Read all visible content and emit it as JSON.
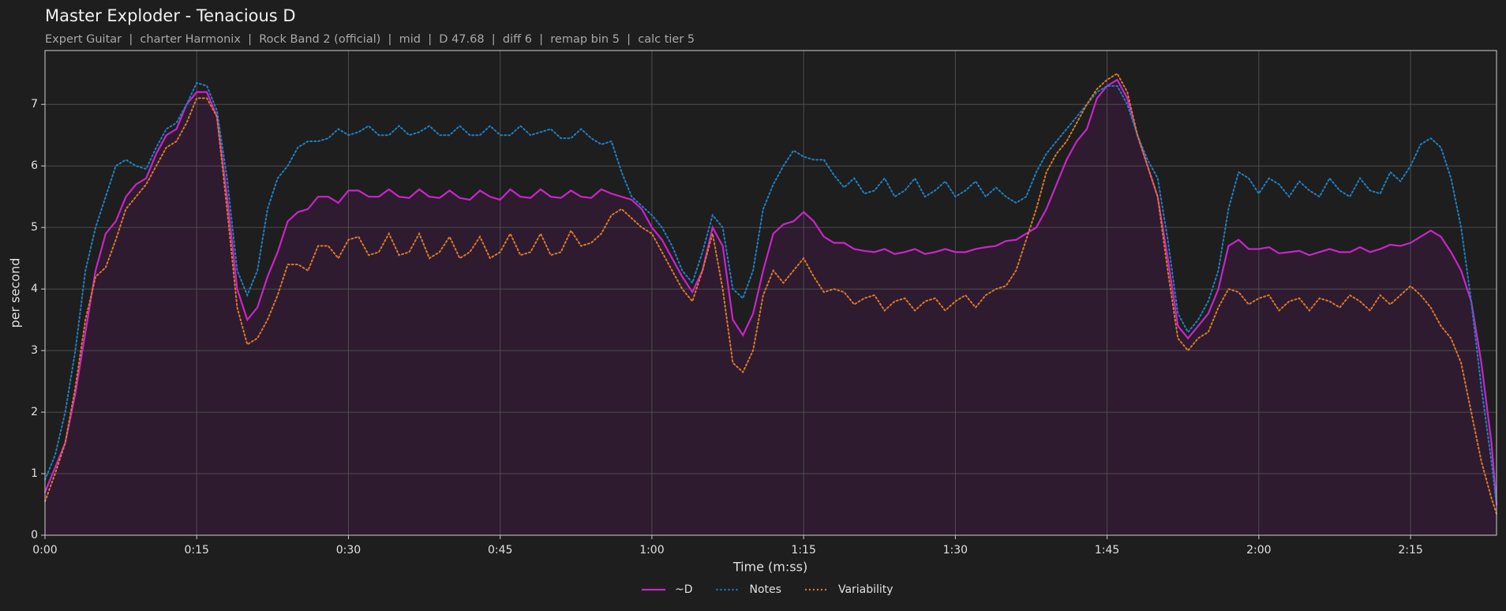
{
  "chart_data": {
    "type": "line",
    "title": "Master Exploder - Tenacious D",
    "subtitle": "Expert Guitar  |  charter Harmonix  |  Rock Band 2 (official)  |  mid  |  D 47.68  |  diff 6  |  remap bin 5  |  calc tier 5",
    "x_label": "Time (m:ss)",
    "y_label": "per second",
    "x": [
      0,
      1,
      2,
      3,
      4,
      5,
      6,
      7,
      8,
      9,
      10,
      11,
      12,
      13,
      14,
      15,
      16,
      17,
      18,
      19,
      20,
      21,
      22,
      23,
      24,
      25,
      26,
      27,
      28,
      29,
      30,
      31,
      32,
      33,
      34,
      35,
      36,
      37,
      38,
      39,
      40,
      41,
      42,
      43,
      44,
      45,
      46,
      47,
      48,
      49,
      50,
      51,
      52,
      53,
      54,
      55,
      56,
      57,
      58,
      59,
      60,
      61,
      62,
      63,
      64,
      65,
      66,
      67,
      68,
      69,
      70,
      71,
      72,
      73,
      74,
      75,
      76,
      77,
      78,
      79,
      80,
      81,
      82,
      83,
      84,
      85,
      86,
      87,
      88,
      89,
      90,
      91,
      92,
      93,
      94,
      95,
      96,
      97,
      98,
      99,
      100,
      101,
      102,
      103,
      104,
      105,
      106,
      107,
      108,
      109,
      110,
      111,
      112,
      113,
      114,
      115,
      116,
      117,
      118,
      119,
      120,
      121,
      122,
      123,
      124,
      125,
      126,
      127,
      128,
      129,
      130,
      131,
      132,
      133,
      134,
      135,
      136,
      137,
      138,
      139,
      140,
      141,
      142,
      143,
      143.5
    ],
    "series": [
      {
        "name": "~D",
        "color": "#c825c8",
        "linestyle": "solid",
        "fill": true,
        "fill_color": "#2e1b2f",
        "values": [
          0.7,
          1.1,
          1.5,
          2.3,
          3.3,
          4.3,
          4.9,
          5.1,
          5.5,
          5.7,
          5.8,
          6.2,
          6.5,
          6.6,
          7.0,
          7.2,
          7.2,
          6.8,
          5.5,
          4.0,
          3.5,
          3.7,
          4.2,
          4.6,
          5.1,
          5.25,
          5.3,
          5.5,
          5.5,
          5.4,
          5.6,
          5.6,
          5.5,
          5.5,
          5.62,
          5.5,
          5.48,
          5.62,
          5.5,
          5.48,
          5.6,
          5.48,
          5.45,
          5.6,
          5.5,
          5.45,
          5.62,
          5.5,
          5.48,
          5.62,
          5.5,
          5.48,
          5.6,
          5.5,
          5.48,
          5.62,
          5.55,
          5.5,
          5.45,
          5.3,
          5.0,
          4.8,
          4.5,
          4.2,
          3.95,
          4.3,
          5.0,
          4.7,
          3.5,
          3.25,
          3.6,
          4.3,
          4.9,
          5.05,
          5.1,
          5.25,
          5.1,
          4.85,
          4.75,
          4.75,
          4.65,
          4.62,
          4.6,
          4.65,
          4.57,
          4.6,
          4.65,
          4.57,
          4.6,
          4.65,
          4.6,
          4.6,
          4.65,
          4.68,
          4.7,
          4.78,
          4.8,
          4.9,
          5.0,
          5.3,
          5.7,
          6.1,
          6.4,
          6.6,
          7.1,
          7.3,
          7.4,
          7.1,
          6.5,
          6.0,
          5.5,
          4.5,
          3.4,
          3.2,
          3.4,
          3.6,
          4.0,
          4.7,
          4.8,
          4.65,
          4.65,
          4.68,
          4.58,
          4.6,
          4.62,
          4.55,
          4.6,
          4.65,
          4.6,
          4.6,
          4.68,
          4.6,
          4.65,
          4.72,
          4.7,
          4.75,
          4.85,
          4.95,
          4.85,
          4.6,
          4.3,
          3.8,
          2.8,
          1.5,
          0.5
        ]
      },
      {
        "name": "Notes",
        "color": "#1f7fc0",
        "linestyle": "dotted",
        "fill": false,
        "values": [
          0.9,
          1.3,
          2.0,
          3.0,
          4.3,
          5.0,
          5.5,
          6.0,
          6.1,
          6.0,
          5.95,
          6.3,
          6.6,
          6.7,
          7.0,
          7.35,
          7.3,
          6.9,
          5.8,
          4.3,
          3.9,
          4.3,
          5.3,
          5.8,
          6.0,
          6.3,
          6.4,
          6.4,
          6.45,
          6.6,
          6.5,
          6.55,
          6.65,
          6.5,
          6.5,
          6.65,
          6.5,
          6.55,
          6.65,
          6.5,
          6.5,
          6.65,
          6.5,
          6.5,
          6.65,
          6.5,
          6.5,
          6.65,
          6.5,
          6.55,
          6.6,
          6.45,
          6.45,
          6.6,
          6.45,
          6.35,
          6.4,
          5.9,
          5.5,
          5.35,
          5.2,
          5.0,
          4.7,
          4.3,
          4.1,
          4.6,
          5.2,
          5.0,
          4.0,
          3.85,
          4.3,
          5.3,
          5.7,
          6.0,
          6.25,
          6.15,
          6.1,
          6.1,
          5.85,
          5.65,
          5.8,
          5.55,
          5.6,
          5.8,
          5.5,
          5.6,
          5.8,
          5.5,
          5.6,
          5.75,
          5.5,
          5.6,
          5.75,
          5.5,
          5.65,
          5.5,
          5.4,
          5.5,
          5.9,
          6.2,
          6.4,
          6.6,
          6.8,
          7.0,
          7.2,
          7.3,
          7.3,
          7.0,
          6.5,
          6.1,
          5.8,
          4.8,
          3.6,
          3.3,
          3.5,
          3.8,
          4.3,
          5.3,
          5.9,
          5.8,
          5.55,
          5.8,
          5.7,
          5.5,
          5.75,
          5.6,
          5.5,
          5.8,
          5.6,
          5.5,
          5.8,
          5.6,
          5.55,
          5.9,
          5.75,
          6.0,
          6.35,
          6.45,
          6.3,
          5.8,
          5.0,
          3.8,
          2.4,
          1.2,
          0.5
        ]
      },
      {
        "name": "Variability",
        "color": "#d9782a",
        "linestyle": "dotted",
        "fill": false,
        "values": [
          0.55,
          1.0,
          1.5,
          2.4,
          3.5,
          4.2,
          4.35,
          4.8,
          5.3,
          5.5,
          5.7,
          6.0,
          6.3,
          6.4,
          6.7,
          7.1,
          7.1,
          6.8,
          5.3,
          3.7,
          3.1,
          3.2,
          3.5,
          3.9,
          4.4,
          4.4,
          4.3,
          4.7,
          4.7,
          4.5,
          4.8,
          4.85,
          4.55,
          4.6,
          4.9,
          4.55,
          4.6,
          4.9,
          4.5,
          4.6,
          4.85,
          4.5,
          4.6,
          4.85,
          4.5,
          4.6,
          4.9,
          4.55,
          4.6,
          4.9,
          4.55,
          4.6,
          4.95,
          4.7,
          4.75,
          4.9,
          5.2,
          5.3,
          5.15,
          5.0,
          4.9,
          4.6,
          4.3,
          4.0,
          3.8,
          4.3,
          4.9,
          4.0,
          2.8,
          2.65,
          3.0,
          3.9,
          4.3,
          4.1,
          4.3,
          4.5,
          4.2,
          3.95,
          4.0,
          3.95,
          3.75,
          3.85,
          3.9,
          3.65,
          3.8,
          3.85,
          3.65,
          3.8,
          3.85,
          3.65,
          3.8,
          3.9,
          3.7,
          3.9,
          4.0,
          4.05,
          4.3,
          4.8,
          5.3,
          5.9,
          6.2,
          6.4,
          6.7,
          7.0,
          7.25,
          7.4,
          7.5,
          7.2,
          6.5,
          6.0,
          5.5,
          4.3,
          3.2,
          3.0,
          3.2,
          3.3,
          3.7,
          4.0,
          3.95,
          3.75,
          3.85,
          3.9,
          3.65,
          3.8,
          3.85,
          3.65,
          3.85,
          3.8,
          3.7,
          3.9,
          3.8,
          3.65,
          3.9,
          3.75,
          3.9,
          4.05,
          3.9,
          3.7,
          3.4,
          3.2,
          2.8,
          2.0,
          1.2,
          0.6,
          0.35
        ]
      }
    ],
    "xlim": [
      0,
      143.5
    ],
    "ylim": [
      0,
      7.875
    ],
    "xticks": [
      {
        "value": 0,
        "label": "0:00"
      },
      {
        "value": 15,
        "label": "0:15"
      },
      {
        "value": 30,
        "label": "0:30"
      },
      {
        "value": 45,
        "label": "0:45"
      },
      {
        "value": 60,
        "label": "1:00"
      },
      {
        "value": 75,
        "label": "1:15"
      },
      {
        "value": 90,
        "label": "1:30"
      },
      {
        "value": 105,
        "label": "1:45"
      },
      {
        "value": 120,
        "label": "2:00"
      },
      {
        "value": 135,
        "label": "2:15"
      }
    ],
    "yticks": [
      0,
      1,
      2,
      3,
      4,
      5,
      6,
      7
    ],
    "grid": true,
    "legend": "bottom"
  }
}
